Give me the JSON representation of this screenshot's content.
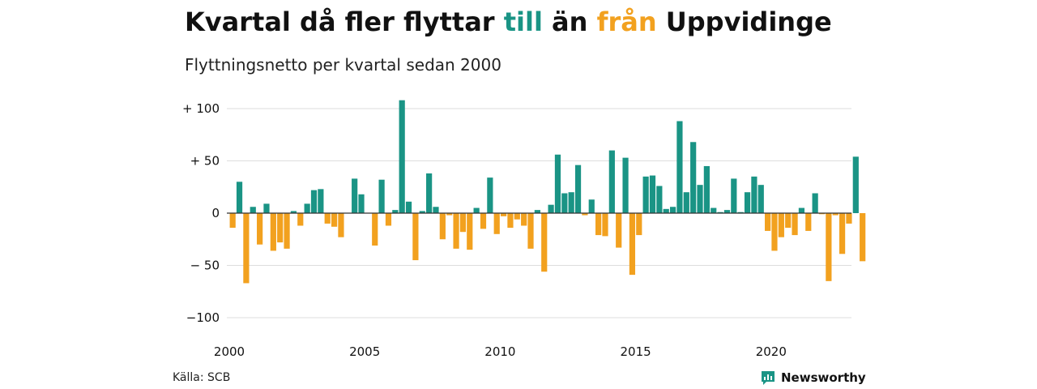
{
  "title": {
    "part1": "Kvartal då fler flyttar ",
    "till": "till",
    "part2": " än ",
    "fran": "från",
    "part3": " Uppvidinge"
  },
  "subtitle": "Flyttningsnetto per kvartal sedan 2000",
  "source": "Källa: SCB",
  "brand": "Newsworthy",
  "colors": {
    "positive": "#1a9485",
    "negative": "#f2a11f",
    "grid": "#dddddd",
    "zero_line": "#333333"
  },
  "chart_data": {
    "type": "bar",
    "title": "Kvartal då fler flyttar till än från Uppvidinge",
    "subtitle": "Flyttningsnetto per kvartal sedan 2000",
    "x_start": "2000 Q1",
    "x_ticks": [
      "2000",
      "2005",
      "2010",
      "2015",
      "2020"
    ],
    "y_ticks": [
      {
        "value": 100,
        "label": "+ 100"
      },
      {
        "value": 50,
        "label": "+  50"
      },
      {
        "value": 0,
        "label": "0"
      },
      {
        "value": -50,
        "label": "− 50"
      },
      {
        "value": -100,
        "label": "−100"
      }
    ],
    "ylim": [
      -100,
      110
    ],
    "grid": true,
    "values": [
      -14,
      30,
      -67,
      6,
      -30,
      9,
      -36,
      -28,
      -34,
      2,
      -12,
      9,
      22,
      23,
      -10,
      -13,
      -23,
      0,
      33,
      18,
      0,
      -31,
      32,
      -12,
      3,
      108,
      11,
      -45,
      2,
      38,
      6,
      -25,
      -2,
      -34,
      -18,
      -35,
      5,
      -15,
      34,
      -20,
      -3,
      -14,
      -6,
      -12,
      -34,
      3,
      -56,
      8,
      56,
      19,
      20,
      46,
      -2,
      13,
      -21,
      -22,
      60,
      -33,
      53,
      -59,
      -21,
      35,
      36,
      26,
      4,
      6,
      88,
      20,
      68,
      27,
      45,
      5,
      1,
      3,
      33,
      1,
      20,
      35,
      27,
      -17,
      -36,
      -23,
      -14,
      -21,
      5,
      -17,
      19,
      -1,
      -65,
      -2,
      -39,
      -10,
      54,
      -46
    ]
  }
}
